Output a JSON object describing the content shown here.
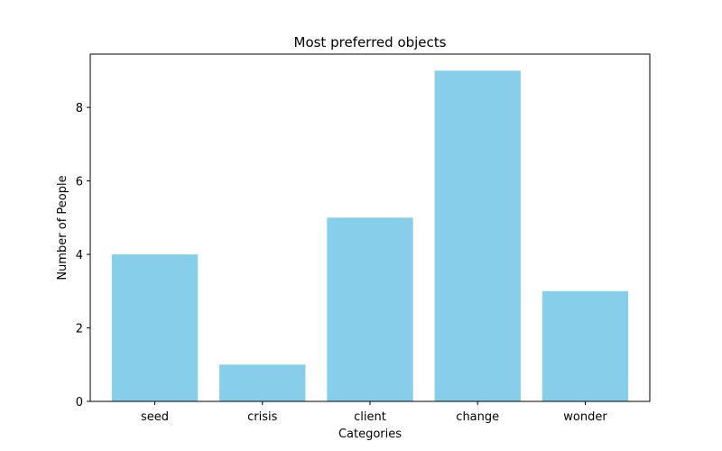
{
  "chart_data": {
    "type": "bar",
    "title": "Most preferred objects",
    "xlabel": "Categories",
    "ylabel": "Number of People",
    "categories": [
      "seed",
      "crisis",
      "client",
      "change",
      "wonder"
    ],
    "values": [
      4,
      1,
      5,
      9,
      3
    ],
    "ylim": [
      0,
      9.45
    ],
    "yticks": [
      0,
      2,
      4,
      6,
      8
    ],
    "bar_color": "#87ceeb",
    "grid": false,
    "legend": "none"
  }
}
